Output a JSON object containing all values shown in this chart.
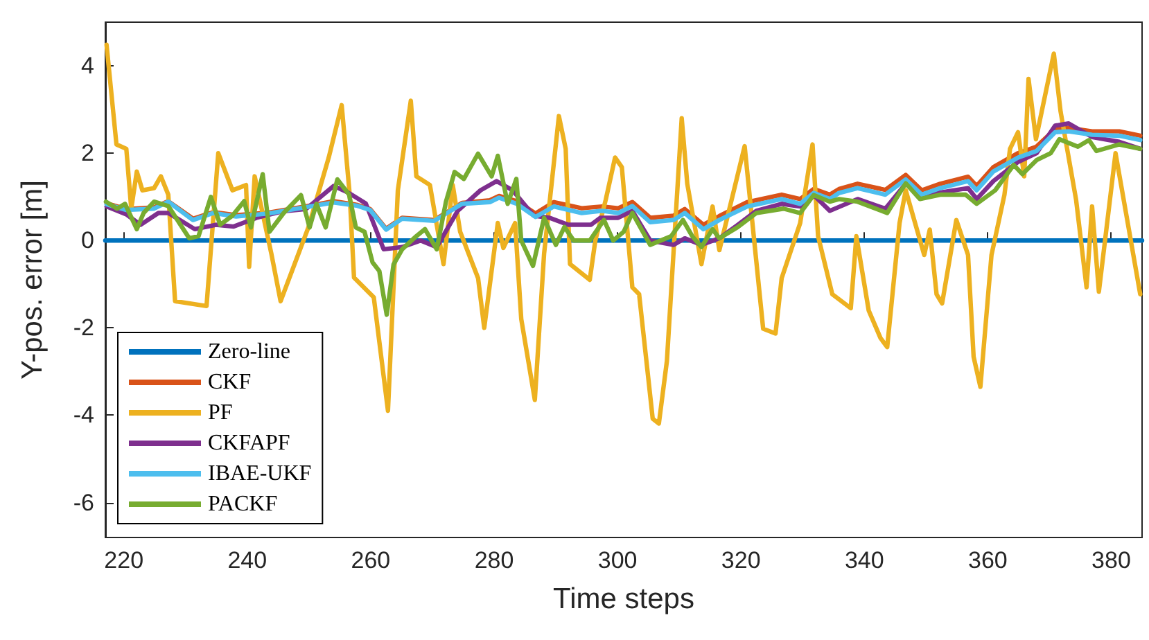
{
  "chart_data": {
    "type": "line",
    "xlabel": "Time steps",
    "ylabel": "Y-pos. error [m]",
    "xlim": [
      217,
      385
    ],
    "ylim": [
      -6.8,
      5
    ],
    "xticks": [
      220,
      240,
      260,
      280,
      300,
      320,
      340,
      360,
      380
    ],
    "yticks": [
      -6,
      -4,
      -2,
      0,
      2,
      4
    ],
    "grid": false,
    "legend": "bottom left",
    "marker": "none",
    "line_style": "solid",
    "series": [
      {
        "name": "Zero-line",
        "color": "#0072bd",
        "x": [
          217,
          385
        ],
        "values": [
          0,
          0
        ]
      },
      {
        "name": "CKF",
        "color": "#d95319",
        "x": [
          217.2,
          220.4,
          224.9,
          227.2,
          231.2,
          234.5,
          238.2,
          243.5,
          251,
          254,
          257.7,
          259.9,
          262.5,
          265.1,
          270.3,
          274.8,
          279.3,
          280.8,
          283.7,
          286.7,
          289.7,
          294.2,
          297.5,
          300.1,
          302.4,
          305.3,
          309.1,
          310.9,
          313.9,
          316.5,
          321,
          326.6,
          329.6,
          331.8,
          334.4,
          335.9,
          338.9,
          343.4,
          346.7,
          349.3,
          352.3,
          356.8,
          358.2,
          360.9,
          364.9,
          367.9,
          370.9,
          373.1,
          376.9,
          381.3,
          384.7
        ],
        "values": [
          0.85,
          0.72,
          0.76,
          0.9,
          0.5,
          0.65,
          0.58,
          0.64,
          0.82,
          0.9,
          0.82,
          0.72,
          0.27,
          0.52,
          0.47,
          0.86,
          0.92,
          1.02,
          0.9,
          0.62,
          0.88,
          0.74,
          0.78,
          0.74,
          0.88,
          0.52,
          0.57,
          0.72,
          0.36,
          0.56,
          0.88,
          1.05,
          0.95,
          1.18,
          1.05,
          1.18,
          1.3,
          1.16,
          1.5,
          1.15,
          1.3,
          1.46,
          1.25,
          1.68,
          2.0,
          2.15,
          2.55,
          2.58,
          2.5,
          2.5,
          2.4
        ]
      },
      {
        "name": "PF",
        "color": "#edb120",
        "x": [
          217.2,
          218.8,
          220.4,
          221.2,
          222.1,
          223,
          224.9,
          226,
          227.2,
          228.3,
          233.4,
          235.3,
          237.6,
          239.8,
          240.3,
          241.2,
          243.9,
          245.4,
          249.9,
          253.2,
          255.3,
          256.6,
          257.3,
          260.5,
          262.8,
          264.4,
          266.5,
          267.4,
          269.6,
          271.8,
          273.3,
          274.5,
          277.4,
          278.4,
          280.6,
          281.5,
          283.4,
          284.4,
          286.6,
          288.1,
          290.5,
          291.6,
          292.3,
          295.5,
          296.4,
          298.1,
          299.6,
          300.7,
          302.4,
          303.5,
          305.7,
          306.7,
          308,
          310.4,
          311.3,
          313.6,
          315.4,
          316.5,
          320.6,
          321.7,
          323.6,
          325.6,
          326.6,
          329.6,
          331.6,
          332.5,
          334.8,
          337.8,
          338.7,
          340.7,
          342.6,
          343.7,
          345.7,
          346.7,
          349.7,
          350.6,
          351.7,
          352.6,
          354.9,
          356.8,
          357.7,
          358.8,
          360.6,
          362.7,
          363.6,
          364.9,
          365.9,
          366.6,
          367.8,
          370.7,
          371.8,
          374.3,
          376,
          376.9,
          378,
          380.7,
          384.7
        ],
        "values": [
          4.48,
          2.2,
          2.1,
          0.73,
          1.58,
          1.15,
          1.2,
          1.47,
          1.05,
          -1.39,
          -1.5,
          2.0,
          1.15,
          1.27,
          -0.6,
          1.47,
          -0.3,
          -1.39,
          0.3,
          1.9,
          3.1,
          1.05,
          -0.85,
          -1.3,
          -3.9,
          1.15,
          3.2,
          1.47,
          1.27,
          -0.54,
          1.27,
          0.2,
          -0.86,
          -2.0,
          0.4,
          -0.17,
          0.4,
          -1.8,
          -3.65,
          -0.3,
          2.85,
          2.1,
          -0.54,
          -0.9,
          0,
          0.94,
          1.9,
          1.68,
          -1.07,
          -1.23,
          -4.08,
          -4.19,
          -2.76,
          2.8,
          1.3,
          -0.54,
          0.78,
          -0.22,
          2.16,
          0.62,
          -2.02,
          -2.13,
          -0.86,
          0.4,
          2.2,
          0.1,
          -1.23,
          -1.55,
          0.1,
          -1.6,
          -2.23,
          -2.44,
          0.4,
          1.15,
          -0.33,
          0.25,
          -1.23,
          -1.44,
          0.47,
          -0.33,
          -2.66,
          -3.35,
          -0.33,
          1.05,
          2.1,
          2.48,
          1.47,
          3.7,
          2.32,
          4.28,
          2.95,
          0.94,
          -1.07,
          0.78,
          -1.17,
          2.0,
          -1.23
        ]
      },
      {
        "name": "CKFAPF",
        "color": "#7e2f8e",
        "x": [
          217.2,
          220.4,
          222.7,
          225.6,
          227.2,
          231.5,
          234.9,
          237.8,
          241.5,
          245.8,
          249.5,
          254,
          256.3,
          259.2,
          262.1,
          265.1,
          268.1,
          270.7,
          274.1,
          277.8,
          280.4,
          283,
          286.4,
          289,
          292,
          295.7,
          297.2,
          300.1,
          302.4,
          305.3,
          309.1,
          310.9,
          313.6,
          316.5,
          319.5,
          322.5,
          326.6,
          329.6,
          331.8,
          334.4,
          338.9,
          343.4,
          346.7,
          349.3,
          352.3,
          356.8,
          358.2,
          360.9,
          364.9,
          367.9,
          370.9,
          373.1,
          376.9,
          381.3,
          384.7
        ],
        "values": [
          0.78,
          0.6,
          0.36,
          0.63,
          0.63,
          0.26,
          0.36,
          0.32,
          0.52,
          0.67,
          0.72,
          1.25,
          1.1,
          0.85,
          -0.2,
          -0.15,
          0,
          -0.15,
          0.68,
          1.15,
          1.36,
          1.15,
          0.57,
          0.52,
          0.36,
          0.36,
          0.52,
          0.52,
          0.68,
          0,
          -0.1,
          0.05,
          -0.1,
          0.05,
          0.36,
          0.68,
          0.84,
          0.78,
          1.04,
          0.68,
          0.95,
          0.73,
          1.3,
          1.0,
          1.1,
          1.2,
          0.95,
          1.36,
          1.8,
          2.0,
          2.63,
          2.68,
          2.37,
          2.26,
          2.1
        ]
      },
      {
        "name": "IBAE-UKF",
        "color": "#4dbeee",
        "x": [
          217.2,
          220.4,
          224.9,
          227.2,
          231.2,
          234.5,
          238.2,
          243.5,
          251,
          254,
          257.7,
          259.9,
          262.5,
          265.1,
          270.3,
          274.8,
          279.3,
          280.8,
          283.7,
          286.7,
          289.7,
          294.2,
          297.5,
          300.1,
          302.4,
          305.3,
          309.1,
          310.9,
          313.9,
          316.5,
          321,
          326.6,
          329.6,
          331.8,
          334.4,
          335.9,
          338.9,
          343.4,
          346.7,
          349.3,
          352.3,
          356.8,
          358.2,
          360.9,
          364.9,
          367.9,
          370.9,
          373.1,
          376.9,
          381.3,
          384.7
        ],
        "values": [
          0.83,
          0.7,
          0.73,
          0.89,
          0.47,
          0.63,
          0.55,
          0.62,
          0.8,
          0.87,
          0.8,
          0.7,
          0.25,
          0.5,
          0.45,
          0.84,
          0.88,
          0.98,
          0.84,
          0.54,
          0.78,
          0.63,
          0.68,
          0.63,
          0.79,
          0.42,
          0.47,
          0.63,
          0.26,
          0.47,
          0.78,
          0.95,
          0.84,
          1.09,
          0.95,
          1.09,
          1.2,
          1.05,
          1.4,
          1.05,
          1.2,
          1.36,
          1.15,
          1.58,
          1.9,
          2.05,
          2.48,
          2.5,
          2.42,
          2.4,
          2.3
        ]
      },
      {
        "name": "PACKF",
        "color": "#77ac30",
        "x": [
          217.1,
          218.9,
          220.2,
          222.1,
          223.2,
          224.9,
          227.2,
          230.6,
          232.1,
          234.1,
          235.6,
          237.6,
          239.5,
          240.6,
          242.5,
          243.6,
          245.9,
          248.7,
          250.1,
          251.2,
          252.7,
          254.6,
          256.5,
          257.6,
          259,
          260.3,
          261.4,
          262.6,
          263.7,
          265.1,
          267.4,
          268.8,
          270.7,
          272.2,
          273.6,
          275.1,
          277.4,
          279.6,
          280.6,
          282.2,
          283.6,
          284.4,
          286.3,
          288.1,
          290,
          291.4,
          292.9,
          295.5,
          297.8,
          299.3,
          301,
          302.4,
          305.3,
          308.7,
          310.6,
          312.1,
          313.6,
          315.4,
          316.5,
          319.5,
          322.5,
          326.9,
          329.6,
          331.8,
          334.4,
          335.9,
          338.9,
          343.7,
          346.7,
          349,
          352.3,
          356.4,
          358.2,
          361.2,
          364.2,
          365.6,
          367.9,
          370.2,
          371.6,
          374.6,
          376.4,
          377.6,
          381.3,
          384.7
        ],
        "values": [
          0.89,
          0.73,
          0.84,
          0.26,
          0.63,
          0.89,
          0.79,
          0.05,
          0.1,
          1.0,
          0.36,
          0.57,
          0.9,
          0.3,
          1.52,
          0.2,
          0.63,
          1.04,
          0.3,
          0.84,
          0.3,
          1.4,
          1.05,
          0.3,
          0.2,
          -0.5,
          -0.7,
          -1.7,
          -0.55,
          -0.2,
          0.1,
          0.26,
          -0.2,
          0.89,
          1.57,
          1.41,
          1.99,
          1.47,
          1.94,
          0.84,
          1.41,
          0,
          -0.58,
          0.52,
          -0.1,
          0.31,
          0,
          0,
          0.47,
          0,
          0.2,
          0.63,
          -0.1,
          0.1,
          0.47,
          0.1,
          -0.15,
          0.26,
          0.05,
          0.31,
          0.63,
          0.73,
          0.63,
          1.04,
          0.89,
          0.95,
          0.89,
          0.63,
          1.31,
          0.95,
          1.05,
          1.05,
          0.84,
          1.15,
          1.73,
          1.52,
          1.84,
          2.0,
          2.32,
          2.15,
          2.3,
          2.05,
          2.2,
          2.1
        ]
      }
    ]
  }
}
